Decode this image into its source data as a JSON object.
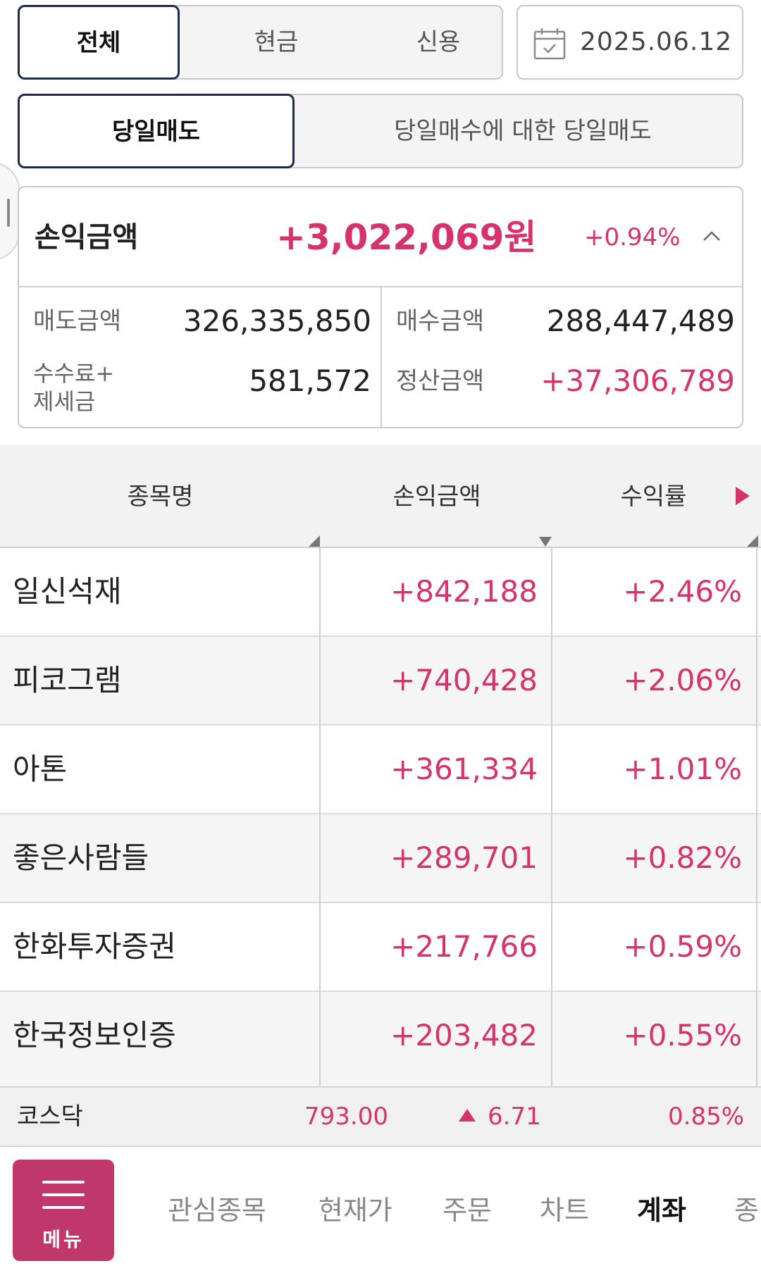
{
  "filters": {
    "account_type": {
      "options": [
        "전체",
        "현금",
        "신용"
      ],
      "selected": "전체"
    },
    "date": "2025.06.12",
    "sell_type": {
      "options": [
        "당일매도",
        "당일매수에 대한 당일매도"
      ],
      "selected": "당일매도"
    }
  },
  "summary": {
    "label": "손익금액",
    "amount": "+3,022,069원",
    "rate": "+0.94%",
    "sell_amount_label": "매도금액",
    "sell_amount": "326,335,850",
    "buy_amount_label": "매수금액",
    "buy_amount": "288,447,489",
    "fee_tax_label_1": "수수료+",
    "fee_tax_label_2": "제세금",
    "fee_tax": "581,572",
    "settlement_label": "정산금액",
    "settlement": "+37,306,789"
  },
  "table": {
    "columns": [
      "종목명",
      "손익금액",
      "수익률"
    ],
    "rows": [
      {
        "name": "일신석재",
        "pl": "+842,188",
        "rate": "+2.46%"
      },
      {
        "name": "피코그램",
        "pl": "+740,428",
        "rate": "+2.06%"
      },
      {
        "name": "아톤",
        "pl": "+361,334",
        "rate": "+1.01%"
      },
      {
        "name": "좋은사람들",
        "pl": "+289,701",
        "rate": "+0.82%"
      },
      {
        "name": "한화투자증권",
        "pl": "+217,766",
        "rate": "+0.59%"
      },
      {
        "name": "한국정보인증",
        "pl": "+203,482",
        "rate": "+0.55%"
      }
    ]
  },
  "ticker": {
    "index": "코스닥",
    "value": "793.00",
    "change": "6.71",
    "change_rate": "0.85%"
  },
  "nav": {
    "menu_label": "메뉴",
    "tabs": [
      "관심종목",
      "현재가",
      "주문",
      "차트",
      "계좌",
      "종"
    ],
    "active": "계좌"
  },
  "colors": {
    "accent": "#d6336c",
    "menu": "#c0386b",
    "active_border": "#1f2a4f"
  }
}
